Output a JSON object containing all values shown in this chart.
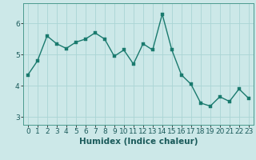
{
  "x": [
    0,
    1,
    2,
    3,
    4,
    5,
    6,
    7,
    8,
    9,
    10,
    11,
    12,
    13,
    14,
    15,
    16,
    17,
    18,
    19,
    20,
    21,
    22,
    23
  ],
  "y": [
    4.35,
    4.8,
    5.6,
    5.35,
    5.2,
    5.4,
    5.5,
    5.7,
    5.5,
    4.95,
    5.15,
    4.7,
    5.35,
    5.15,
    6.3,
    5.15,
    4.35,
    4.05,
    3.45,
    3.35,
    3.65,
    3.5,
    3.9,
    3.6
  ],
  "line_color": "#1a7a6e",
  "marker_color": "#1a7a6e",
  "bg_color": "#cce8e8",
  "grid_color": "#aad4d4",
  "xlabel": "Humidex (Indice chaleur)",
  "xlim": [
    -0.5,
    23.5
  ],
  "ylim": [
    2.75,
    6.65
  ],
  "yticks": [
    3,
    4,
    5,
    6
  ],
  "xticks": [
    0,
    1,
    2,
    3,
    4,
    5,
    6,
    7,
    8,
    9,
    10,
    11,
    12,
    13,
    14,
    15,
    16,
    17,
    18,
    19,
    20,
    21,
    22,
    23
  ],
  "xlabel_fontsize": 7.5,
  "tick_fontsize": 6.5,
  "marker_size": 2.8,
  "line_width": 1.0
}
